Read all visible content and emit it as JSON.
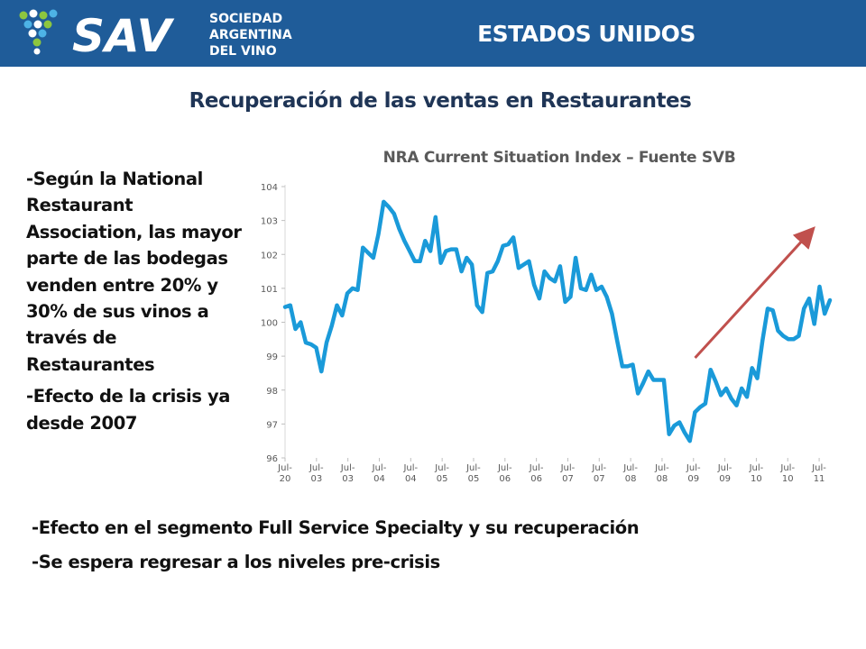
{
  "header": {
    "logo_text": "SAV",
    "logo_subtitle": [
      "SOCIEDAD",
      "ARGENTINA",
      "DEL VINO"
    ],
    "section_title": "ESTADOS UNIDOS",
    "bar_color": "#1f5c99"
  },
  "slide": {
    "title": "Recuperación de las ventas en Restaurantes"
  },
  "left_text": {
    "paragraph_1": "-Según la National Restaurant Association, las mayor parte de las bodegas venden entre 20% y 30% de sus vinos a través de Restaurantes",
    "paragraph_2": "-Efecto de la crisis ya desde 2007"
  },
  "bottom_text": {
    "line_1": "-Efecto en el segmento Full Service Specialty y su recuperación",
    "line_2": "-Se espera regresar a los niveles pre-crisis"
  },
  "chart_data": {
    "type": "line",
    "title": "NRA Current Situation Index – Fuente SVB",
    "xlabel": "",
    "ylabel": "",
    "ylim": [
      96,
      104
    ],
    "yticks": [
      "96",
      "97",
      "98",
      "99",
      "100",
      "101",
      "102",
      "103",
      "104"
    ],
    "xticks": [
      {
        "label": "Jul-20",
        "lines": [
          "Jul-",
          "20"
        ]
      },
      {
        "label": "Jul-03",
        "lines": [
          "Jul-",
          "03"
        ]
      },
      {
        "label": "Jul-03",
        "lines": [
          "Jul-",
          "03"
        ]
      },
      {
        "label": "Jul-04",
        "lines": [
          "Jul-",
          "04"
        ]
      },
      {
        "label": "Jul-04",
        "lines": [
          "Jul-",
          "04"
        ]
      },
      {
        "label": "Jul-05",
        "lines": [
          "Jul-",
          "05"
        ]
      },
      {
        "label": "Jul-05",
        "lines": [
          "Jul-",
          "05"
        ]
      },
      {
        "label": "Jul-06",
        "lines": [
          "Jul-",
          "06"
        ]
      },
      {
        "label": "Jul-06",
        "lines": [
          "Jul-",
          "06"
        ]
      },
      {
        "label": "Jul-07",
        "lines": [
          "Jul-",
          "07"
        ]
      },
      {
        "label": "Jul-07",
        "lines": [
          "Jul-",
          "07"
        ]
      },
      {
        "label": "Jul-08",
        "lines": [
          "Jul-",
          "08"
        ]
      },
      {
        "label": "Jul-08",
        "lines": [
          "Jul-",
          "08"
        ]
      },
      {
        "label": "Jul-09",
        "lines": [
          "Jul-",
          "09"
        ]
      },
      {
        "label": "Jul-09",
        "lines": [
          "Jul-",
          "09"
        ]
      },
      {
        "label": "Jul-10",
        "lines": [
          "Jul-",
          "10"
        ]
      },
      {
        "label": "Jul-10",
        "lines": [
          "Jul-",
          "10"
        ]
      },
      {
        "label": "Jul-11",
        "lines": [
          "Jul-",
          "11"
        ]
      }
    ],
    "series": [
      {
        "color": "#1a9ad9",
        "values": [
          100.45,
          100.5,
          99.8,
          100.0,
          99.4,
          99.35,
          99.25,
          98.55,
          99.4,
          99.9,
          100.5,
          100.2,
          100.85,
          101.0,
          100.95,
          102.2,
          102.05,
          101.9,
          102.6,
          103.55,
          103.4,
          103.2,
          102.75,
          102.4,
          102.1,
          101.8,
          101.8,
          102.4,
          102.1,
          103.1,
          101.75,
          102.1,
          102.15,
          102.15,
          101.5,
          101.9,
          101.7,
          100.5,
          100.3,
          101.45,
          101.5,
          101.8,
          102.25,
          102.3,
          102.5,
          101.6,
          101.7,
          101.8,
          101.1,
          100.7,
          101.5,
          101.3,
          101.2,
          101.65,
          100.6,
          100.75,
          101.9,
          101.0,
          100.95,
          101.4,
          100.95,
          101.05,
          100.75,
          100.25,
          99.45,
          98.7,
          98.7,
          98.75,
          97.9,
          98.2,
          98.55,
          98.3,
          98.3,
          98.3,
          96.7,
          96.95,
          97.05,
          96.75,
          96.5,
          97.35,
          97.5,
          97.6,
          98.6,
          98.25,
          97.85,
          98.05,
          97.75,
          97.55,
          98.05,
          97.8,
          98.65,
          98.35,
          99.45,
          100.4,
          100.35,
          99.75,
          99.6,
          99.5,
          99.5,
          99.6,
          100.4,
          100.7,
          99.95,
          101.05,
          100.25,
          100.65
        ]
      }
    ],
    "annotations": [
      {
        "type": "arrow",
        "color": "#c0504d",
        "from": {
          "x": 0.75,
          "y": 98.95
        },
        "to": {
          "x": 0.96,
          "y": 102.65
        }
      }
    ]
  }
}
